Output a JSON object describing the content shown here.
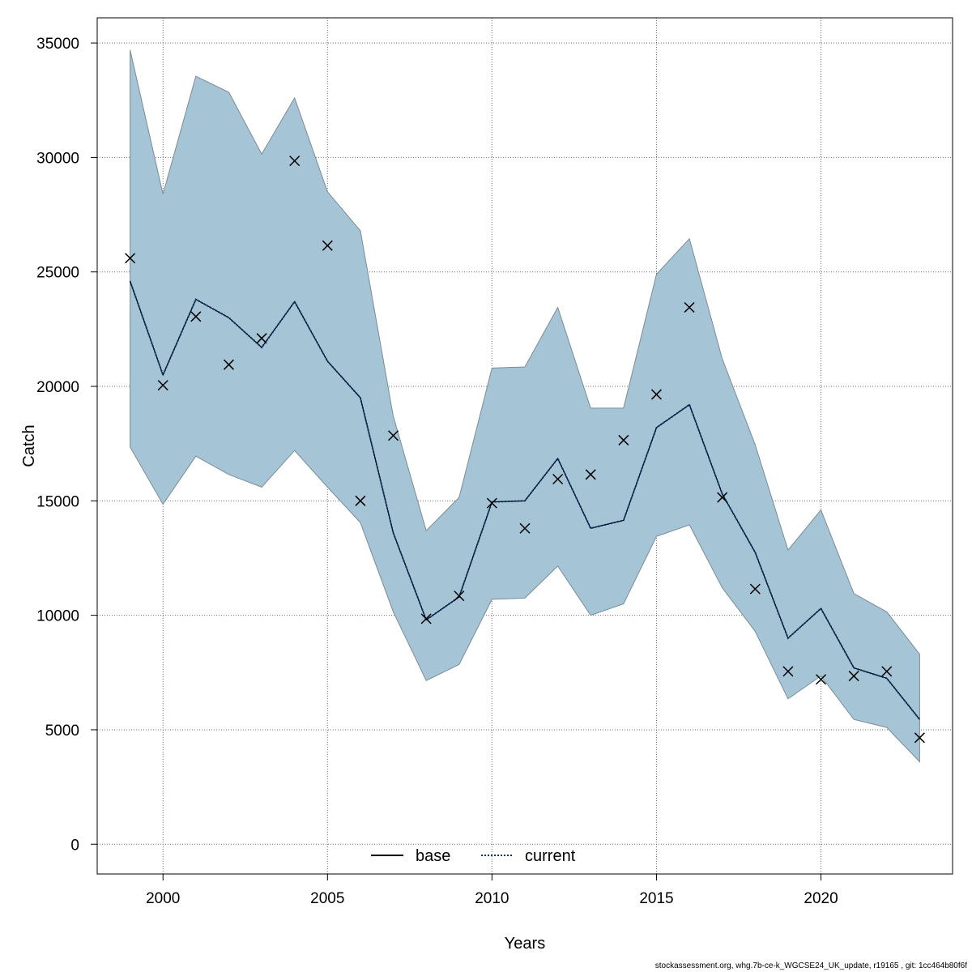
{
  "chart_data": {
    "type": "line",
    "title": "",
    "xlabel": "Years",
    "ylabel": "Catch",
    "xlim": [
      1998,
      2024
    ],
    "ylim": [
      -1300,
      36100
    ],
    "xticks": [
      2000,
      2005,
      2010,
      2015,
      2020
    ],
    "yticks": [
      0,
      5000,
      10000,
      15000,
      20000,
      25000,
      30000,
      35000
    ],
    "grid": true,
    "legend_position": "bottom-center",
    "legend": [
      {
        "label": "base",
        "style": "solid",
        "color": "#000000"
      },
      {
        "label": "current",
        "style": "dotted",
        "color": "#00366a"
      }
    ],
    "band_color": "#a5c4d6",
    "band_edge_color": "#7a8c96",
    "x": [
      1999,
      2000,
      2001,
      2002,
      2003,
      2004,
      2005,
      2006,
      2007,
      2008,
      2009,
      2010,
      2011,
      2012,
      2013,
      2014,
      2015,
      2016,
      2017,
      2018,
      2019,
      2020,
      2021,
      2022,
      2023
    ],
    "series": [
      {
        "name": "current",
        "values": [
          24600,
          20500,
          23800,
          23000,
          21700,
          23700,
          21100,
          19500,
          13600,
          9800,
          10800,
          14950,
          15000,
          16850,
          13800,
          14150,
          18200,
          19200,
          15300,
          12750,
          9000,
          10300,
          7700,
          7250,
          5450
        ]
      },
      {
        "name": "band_upper",
        "values": [
          34700,
          28400,
          33550,
          32850,
          30150,
          32600,
          28500,
          26800,
          18700,
          13700,
          15150,
          20800,
          20850,
          23450,
          19050,
          19050,
          24900,
          26450,
          21200,
          17450,
          12850,
          14600,
          10950,
          10150,
          8300
        ]
      },
      {
        "name": "band_lower",
        "values": [
          17350,
          14850,
          16950,
          16150,
          15600,
          17200,
          15600,
          14050,
          10150,
          7150,
          7850,
          10700,
          10750,
          12150,
          10000,
          10500,
          13450,
          13950,
          11200,
          9300,
          6350,
          7350,
          5450,
          5100,
          3600
        ]
      },
      {
        "name": "observed",
        "values": [
          25600,
          20050,
          23050,
          20950,
          22100,
          29850,
          26150,
          15000,
          17850,
          9850,
          10850,
          14900,
          13800,
          15950,
          16150,
          17650,
          19650,
          23450,
          15150,
          11150,
          7550,
          7200,
          7350,
          7550,
          4650
        ]
      }
    ]
  },
  "footer_text": "stockassessment.org, whg.7b-ce-k_WGCSE24_UK_update, r19165 , git: 1cc464b80f6f"
}
